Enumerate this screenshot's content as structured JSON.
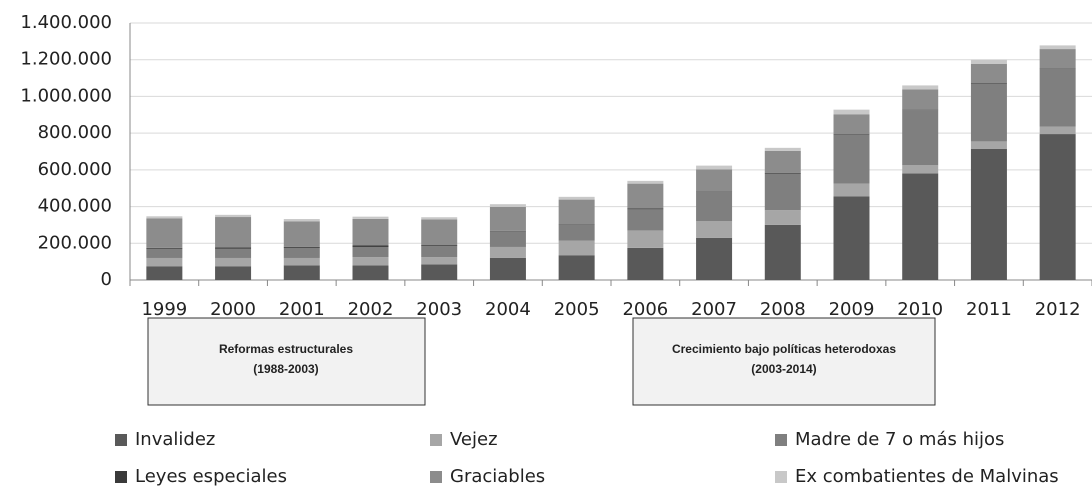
{
  "chart_data": {
    "type": "stacked_bar",
    "categories": [
      "1999",
      "2000",
      "2001",
      "2002",
      "2003",
      "2004",
      "2005",
      "2006",
      "2007",
      "2008",
      "2009",
      "2010",
      "2011",
      "2012"
    ],
    "series": [
      {
        "name": "Invalidez",
        "color": "#595959",
        "values": [
          75000,
          75000,
          80000,
          80000,
          85000,
          120000,
          135000,
          175000,
          230000,
          300000,
          455000,
          580000,
          715000,
          795000
        ]
      },
      {
        "name": "Vejez",
        "color": "#a6a6a6",
        "values": [
          45000,
          45000,
          40000,
          45000,
          40000,
          60000,
          80000,
          95000,
          90000,
          80000,
          70000,
          45000,
          40000,
          40000
        ]
      },
      {
        "name": "Madre de 7 o más hijos",
        "color": "#7f7f7f",
        "values": [
          50000,
          50000,
          55000,
          55000,
          60000,
          85000,
          85000,
          115000,
          160000,
          200000,
          265000,
          300000,
          315000,
          315000
        ]
      },
      {
        "name": "Leyes especiales",
        "color": "#3a3a3a",
        "values": [
          5000,
          8000,
          5000,
          8000,
          5000,
          3000,
          3000,
          5000,
          3000,
          3000,
          3000,
          3000,
          3000,
          3000
        ]
      },
      {
        "name": "Graciables",
        "color": "#8c8c8c",
        "values": [
          160000,
          165000,
          140000,
          145000,
          140000,
          130000,
          135000,
          135000,
          120000,
          120000,
          110000,
          110000,
          105000,
          105000
        ]
      },
      {
        "name": "Ex combatientes de Malvinas",
        "color": "#c8c8c8",
        "values": [
          12000,
          12000,
          12000,
          12000,
          12000,
          15000,
          15000,
          15000,
          20000,
          17000,
          25000,
          22000,
          22000,
          20000
        ]
      }
    ],
    "ylim": [
      0,
      1400000
    ],
    "yticks": [
      0,
      {
        "value": 200000,
        "label": "200.000"
      },
      {
        "value": 400000,
        "label": "400.000"
      },
      {
        "value": 600000,
        "label": "600.000"
      },
      {
        "value": 800000,
        "label": "800.000"
      },
      {
        "value": 1000000,
        "label": "1.000.000"
      },
      {
        "value": 1200000,
        "label": "1.200.000"
      },
      {
        "value": 1400000,
        "label": "1.400.000"
      }
    ],
    "grid": true,
    "annotations": [
      {
        "title": "Reformas estructurales",
        "period": "(1988-2003)"
      },
      {
        "title": "Crecimiento bajo políticas heterodoxas",
        "period": "(2003-2014)"
      }
    ]
  }
}
